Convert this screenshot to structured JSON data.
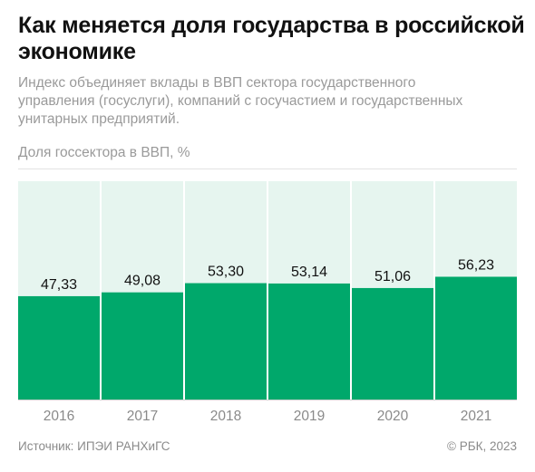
{
  "title": "Как меняется доля государства в российской экономике",
  "subtitle": "Индекс объединяет вклады в ВВП сектора государственного управления (госуслуги), компаний с госучастием и государственных унитарных предприятий.",
  "source": "Источник: ИПЭИ РАНХиГС",
  "copyright": "© РБК, 2023",
  "colors": {
    "bar": "#00a86b",
    "background": "#e6f5ef",
    "baseline": "#cfcfcf"
  },
  "chart_data": {
    "type": "bar",
    "title": "Как меняется доля государства в российской экономике",
    "ylabel": "Доля госсектора в ВВП, %",
    "xlabel": "",
    "categories": [
      "2016",
      "2017",
      "2018",
      "2019",
      "2020",
      "2021"
    ],
    "values": [
      47.33,
      49.08,
      53.3,
      53.14,
      51.06,
      56.23
    ],
    "value_labels": [
      "47,33",
      "49,08",
      "53,30",
      "53,14",
      "51,06",
      "56,23"
    ],
    "ylim": [
      0,
      100
    ],
    "grid": false,
    "legend": "none"
  }
}
